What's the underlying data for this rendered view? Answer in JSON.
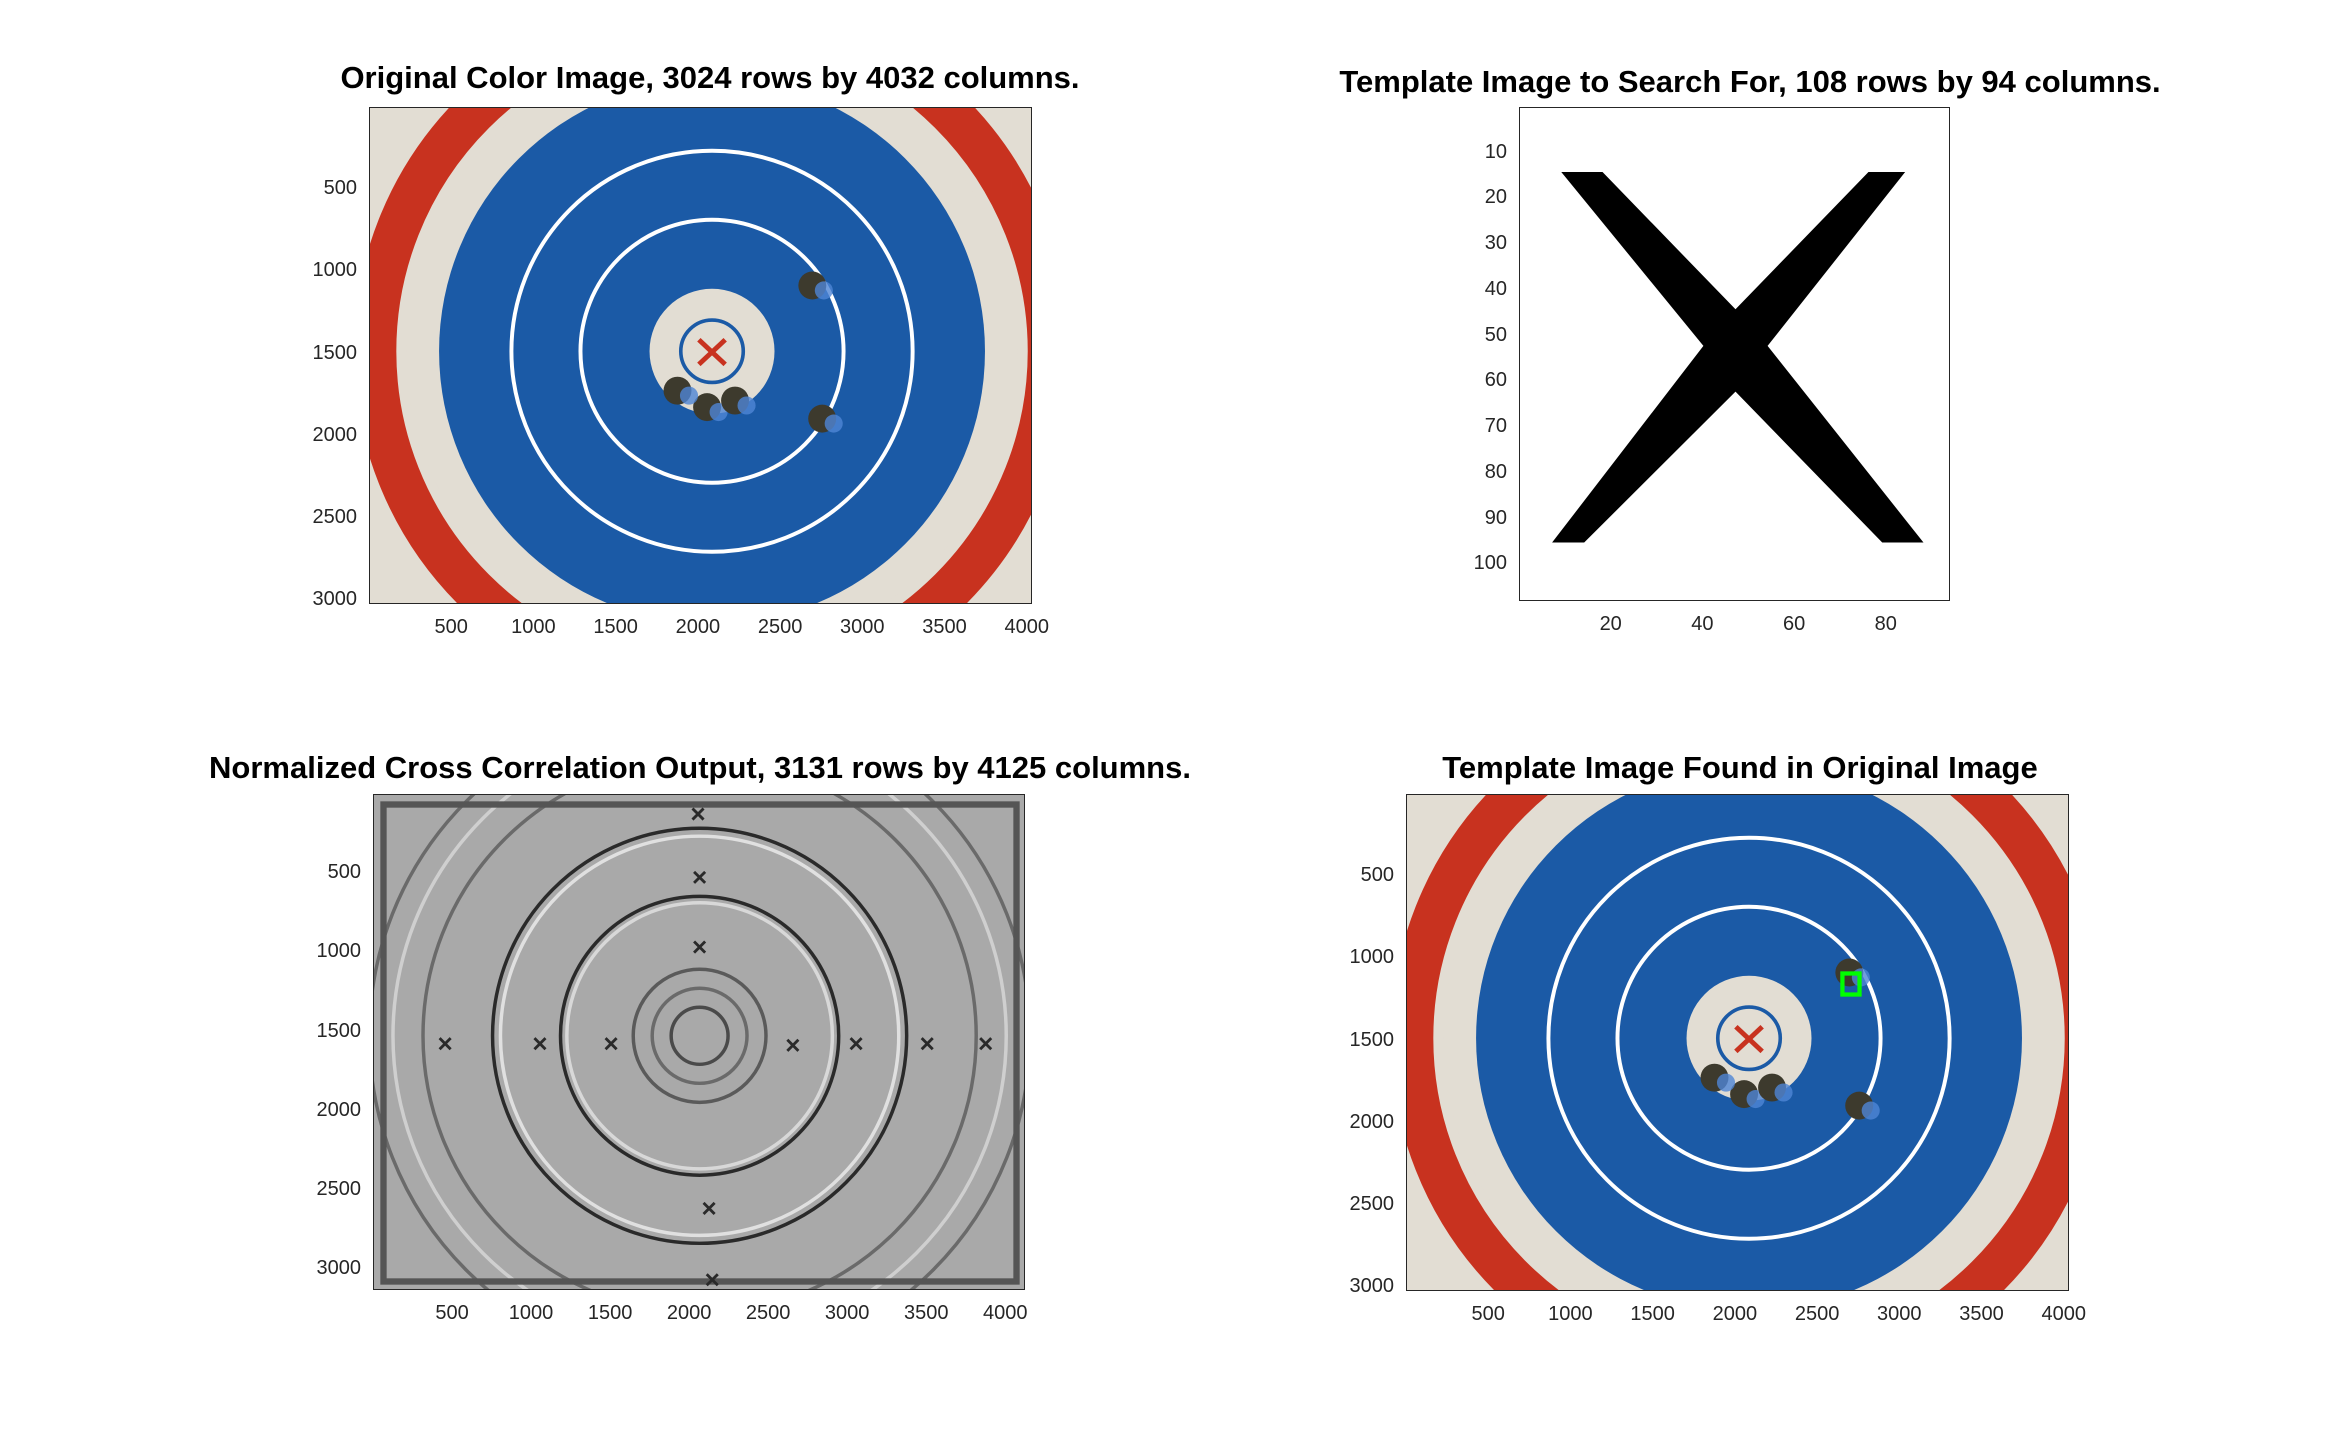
{
  "figure": {
    "panels": [
      {
        "id": "original",
        "title": "Original Color Image, 3024 rows by 4032 columns.",
        "x_ticks": [
          "500",
          "1000",
          "1500",
          "2000",
          "2500",
          "3000",
          "3500",
          "4000"
        ],
        "y_ticks": [
          "500",
          "1000",
          "1500",
          "2000",
          "2500",
          "3000"
        ]
      },
      {
        "id": "template",
        "title": "Template Image to Search For, 108 rows by 94 columns.",
        "x_ticks": [
          "20",
          "40",
          "60",
          "80"
        ],
        "y_ticks": [
          "10",
          "20",
          "30",
          "40",
          "50",
          "60",
          "70",
          "80",
          "90",
          "100"
        ]
      },
      {
        "id": "ncc",
        "title": "Normalized Cross Correlation Output, 3131 rows by 4125 columns.",
        "x_ticks": [
          "500",
          "1000",
          "1500",
          "2000",
          "2500",
          "3000",
          "3500",
          "4000"
        ],
        "y_ticks": [
          "500",
          "1000",
          "1500",
          "2000",
          "2500",
          "3000"
        ]
      },
      {
        "id": "found",
        "title": "Template Image Found in Original Image",
        "x_ticks": [
          "500",
          "1000",
          "1500",
          "2000",
          "2500",
          "3000",
          "3500",
          "4000"
        ],
        "y_ticks": [
          "500",
          "1000",
          "1500",
          "2000",
          "2500",
          "3000"
        ]
      }
    ],
    "colors": {
      "target_blue": "#1b5aa6",
      "paper": "#e2ddd3",
      "red_ring": "#c8321f",
      "match_box": "#00ff00"
    },
    "match_location": {
      "column": 2700,
      "row": 1150
    }
  }
}
